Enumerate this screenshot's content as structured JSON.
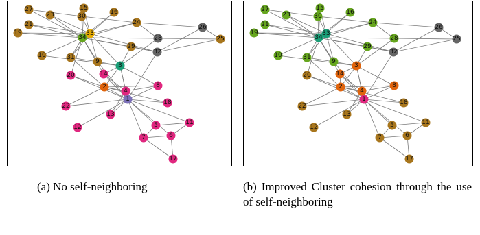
{
  "panels": [
    {
      "caption": "(a) No self-neighboring",
      "colors": {
        "1": "#7b6fb8",
        "2": "#e0640c",
        "3": "#1a9e77",
        "4": "#e0277f",
        "5": "#e0277f",
        "6": "#e0277f",
        "7": "#e0277f",
        "8": "#e0277f",
        "9": "#a8761d",
        "10": "#a8761d",
        "11": "#e0277f",
        "12": "#e0277f",
        "13": "#e0277f",
        "14": "#e0277f",
        "15": "#a8761d",
        "16": "#a8761d",
        "17": "#e0277f",
        "18": "#e0277f",
        "19": "#a8761d",
        "20": "#e0277f",
        "21": "#a8761d",
        "22": "#e0277f",
        "23": "#a8761d",
        "24": "#a8761d",
        "25": "#a8761d",
        "26": "#666666",
        "27": "#a8761d",
        "28": "#666666",
        "29": "#a8761d",
        "30": "#a8761d",
        "31": "#a8761d",
        "32": "#666666",
        "33": "#e6ab02",
        "34": "#66a61e"
      }
    },
    {
      "caption": "(b) Improved Cluster cohesion through the use of self-neighboring",
      "colors": {
        "1": "#e0277f",
        "2": "#e0640c",
        "3": "#e0640c",
        "4": "#e0640c",
        "5": "#a8761d",
        "6": "#a8761d",
        "7": "#a8761d",
        "8": "#e0640c",
        "9": "#66a61e",
        "10": "#66a61e",
        "11": "#a8761d",
        "12": "#a8761d",
        "13": "#a8761d",
        "14": "#e0640c",
        "15": "#66a61e",
        "16": "#66a61e",
        "17": "#a8761d",
        "18": "#a8761d",
        "19": "#66a61e",
        "20": "#a8761d",
        "21": "#66a61e",
        "22": "#a8761d",
        "23": "#66a61e",
        "24": "#66a61e",
        "25": "#666666",
        "26": "#666666",
        "27": "#66a61e",
        "28": "#66a61e",
        "29": "#66a61e",
        "30": "#66a61e",
        "31": "#66a61e",
        "32": "#666666",
        "33": "#1a9e77",
        "34": "#1a9e77"
      }
    }
  ],
  "edges": [
    [
      1,
      2
    ],
    [
      1,
      3
    ],
    [
      1,
      4
    ],
    [
      1,
      5
    ],
    [
      1,
      6
    ],
    [
      1,
      7
    ],
    [
      1,
      8
    ],
    [
      1,
      9
    ],
    [
      1,
      11
    ],
    [
      1,
      12
    ],
    [
      1,
      13
    ],
    [
      1,
      14
    ],
    [
      1,
      18
    ],
    [
      1,
      20
    ],
    [
      1,
      22
    ],
    [
      1,
      32
    ],
    [
      2,
      3
    ],
    [
      2,
      4
    ],
    [
      2,
      8
    ],
    [
      2,
      14
    ],
    [
      2,
      18
    ],
    [
      2,
      20
    ],
    [
      2,
      22
    ],
    [
      2,
      31
    ],
    [
      3,
      4
    ],
    [
      3,
      8
    ],
    [
      3,
      9
    ],
    [
      3,
      10
    ],
    [
      3,
      14
    ],
    [
      3,
      28
    ],
    [
      3,
      29
    ],
    [
      3,
      33
    ],
    [
      4,
      8
    ],
    [
      4,
      13
    ],
    [
      4,
      14
    ],
    [
      5,
      7
    ],
    [
      5,
      11
    ],
    [
      6,
      7
    ],
    [
      6,
      11
    ],
    [
      6,
      17
    ],
    [
      7,
      17
    ],
    [
      9,
      31
    ],
    [
      9,
      33
    ],
    [
      9,
      34
    ],
    [
      10,
      34
    ],
    [
      14,
      34
    ],
    [
      15,
      33
    ],
    [
      15,
      34
    ],
    [
      16,
      33
    ],
    [
      16,
      34
    ],
    [
      19,
      33
    ],
    [
      19,
      34
    ],
    [
      20,
      34
    ],
    [
      21,
      33
    ],
    [
      21,
      34
    ],
    [
      23,
      33
    ],
    [
      23,
      34
    ],
    [
      24,
      26
    ],
    [
      24,
      28
    ],
    [
      24,
      30
    ],
    [
      24,
      33
    ],
    [
      24,
      34
    ],
    [
      25,
      26
    ],
    [
      25,
      28
    ],
    [
      25,
      32
    ],
    [
      26,
      32
    ],
    [
      27,
      30
    ],
    [
      27,
      34
    ],
    [
      28,
      34
    ],
    [
      29,
      32
    ],
    [
      29,
      34
    ],
    [
      30,
      33
    ],
    [
      30,
      34
    ],
    [
      31,
      33
    ],
    [
      31,
      34
    ],
    [
      32,
      33
    ],
    [
      32,
      34
    ],
    [
      33,
      34
    ]
  ]
}
